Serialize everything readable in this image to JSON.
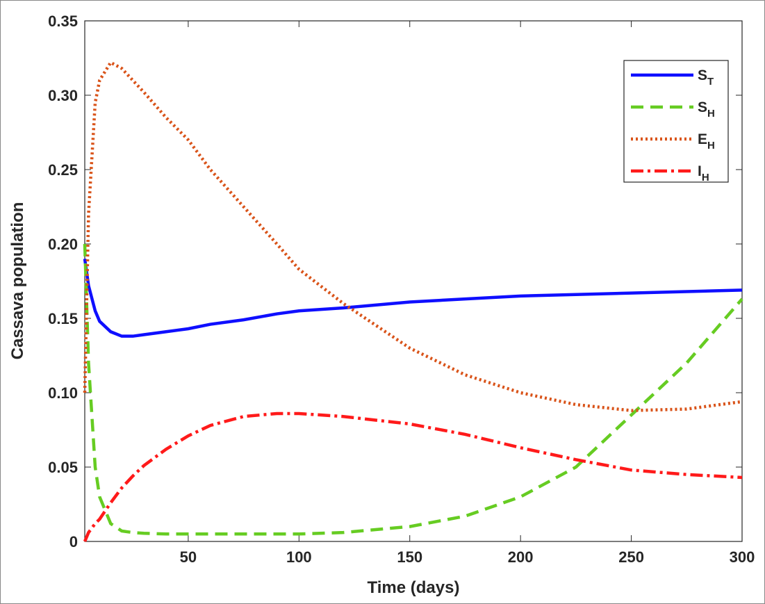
{
  "chart_data": {
    "type": "line",
    "xlabel": "Time (days)",
    "ylabel": "Cassava population",
    "x": [
      3.3,
      5,
      8,
      10,
      15,
      20,
      25,
      30,
      40,
      50,
      60,
      75,
      90,
      100,
      120,
      150,
      175,
      200,
      225,
      250,
      275,
      300
    ],
    "series": [
      {
        "name": "ST",
        "color": "#0f0fff",
        "style": "solid",
        "values": [
          0.19,
          0.172,
          0.155,
          0.148,
          0.141,
          0.138,
          0.138,
          0.139,
          0.141,
          0.143,
          0.146,
          0.149,
          0.153,
          0.155,
          0.157,
          0.161,
          0.163,
          0.165,
          0.166,
          0.167,
          0.168,
          0.169
        ]
      },
      {
        "name": "SH",
        "color": "#66cc22",
        "style": "dashed",
        "values": [
          0.2,
          0.12,
          0.05,
          0.03,
          0.012,
          0.007,
          0.006,
          0.0055,
          0.005,
          0.005,
          0.005,
          0.005,
          0.005,
          0.005,
          0.006,
          0.01,
          0.017,
          0.03,
          0.05,
          0.085,
          0.12,
          0.163
        ]
      },
      {
        "name": "EH",
        "color": "#d95319",
        "style": "dotted",
        "values": [
          0.1,
          0.22,
          0.295,
          0.31,
          0.322,
          0.318,
          0.31,
          0.302,
          0.285,
          0.27,
          0.25,
          0.225,
          0.2,
          0.183,
          0.16,
          0.13,
          0.112,
          0.1,
          0.092,
          0.088,
          0.089,
          0.094
        ]
      },
      {
        "name": "IH",
        "color": "#ff1a1a",
        "style": "dashdot",
        "values": [
          0,
          0.006,
          0.012,
          0.015,
          0.026,
          0.036,
          0.044,
          0.051,
          0.062,
          0.071,
          0.078,
          0.084,
          0.086,
          0.086,
          0.084,
          0.079,
          0.072,
          0.063,
          0.055,
          0.048,
          0.045,
          0.043
        ]
      }
    ],
    "xlim": [
      3.3,
      300
    ],
    "xticks": [
      50,
      100,
      150,
      200,
      250,
      300
    ],
    "ylim": [
      0,
      0.35
    ],
    "yticks": [
      0,
      0.05,
      {
        "value": 0.1,
        "label": "0.10"
      },
      0.15,
      {
        "value": 0.2,
        "label": "0.20"
      },
      0.25,
      {
        "value": 0.3,
        "label": "0.30"
      },
      0.35
    ],
    "grid": false,
    "legend": "upper right"
  }
}
